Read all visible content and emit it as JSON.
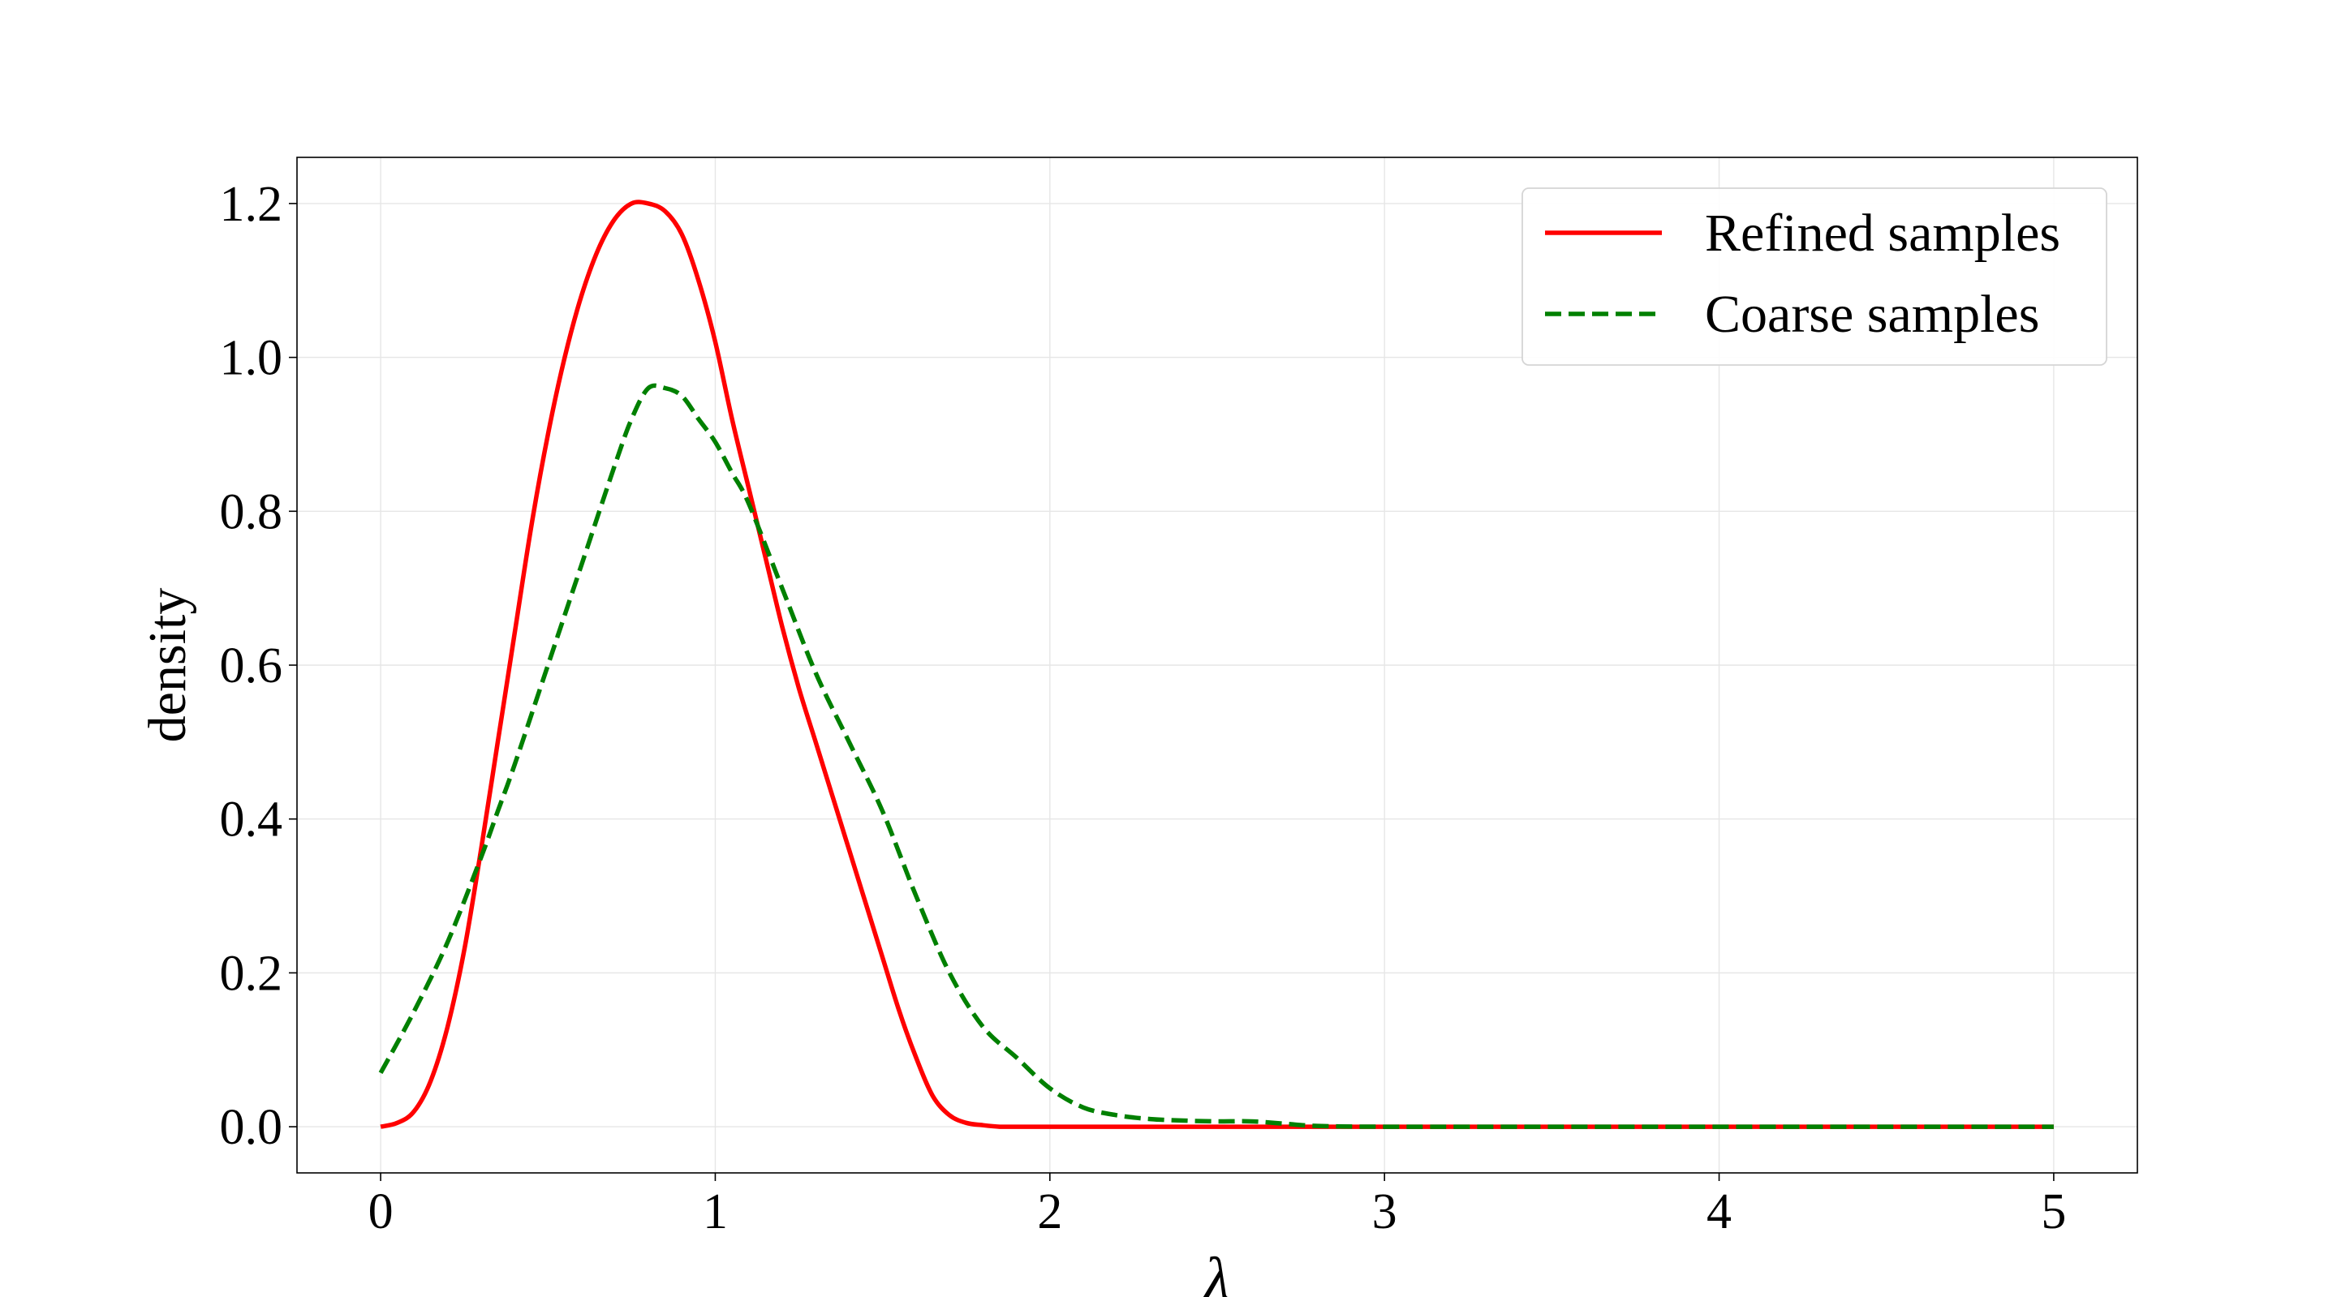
{
  "chart_data": {
    "type": "line",
    "title": "",
    "xlabel": "λ",
    "ylabel": "density",
    "xlim": [
      -0.25,
      5.25
    ],
    "ylim": [
      -0.06,
      1.26
    ],
    "xticks": [
      0,
      1,
      2,
      3,
      4,
      5
    ],
    "xtick_labels": [
      "0",
      "1",
      "2",
      "3",
      "4",
      "5"
    ],
    "yticks": [
      0.0,
      0.2,
      0.4,
      0.6,
      0.8,
      1.0,
      1.2
    ],
    "ytick_labels": [
      "0.0",
      "0.2",
      "0.4",
      "0.6",
      "0.8",
      "1.0",
      "1.2"
    ],
    "grid": true,
    "legend_position": "top-right",
    "series": [
      {
        "name": "Refined samples",
        "color": "#ff0000",
        "style": "solid",
        "x": [
          0,
          0.05,
          0.1,
          0.15,
          0.2,
          0.25,
          0.3,
          0.35,
          0.4,
          0.45,
          0.5,
          0.55,
          0.6,
          0.65,
          0.7,
          0.75,
          0.8,
          0.85,
          0.9,
          0.95,
          1.0,
          1.05,
          1.1,
          1.15,
          1.2,
          1.25,
          1.3,
          1.35,
          1.4,
          1.45,
          1.5,
          1.55,
          1.6,
          1.65,
          1.7,
          1.75,
          1.8,
          1.85,
          1.9,
          2.0,
          2.5,
          3.0,
          3.5,
          4.0,
          4.5,
          5.0
        ],
        "y": [
          0.0,
          0.005,
          0.02,
          0.06,
          0.13,
          0.23,
          0.36,
          0.5,
          0.64,
          0.78,
          0.9,
          1.0,
          1.08,
          1.14,
          1.18,
          1.2,
          1.2,
          1.19,
          1.16,
          1.1,
          1.02,
          0.92,
          0.83,
          0.74,
          0.65,
          0.57,
          0.5,
          0.43,
          0.36,
          0.29,
          0.22,
          0.15,
          0.09,
          0.04,
          0.015,
          0.005,
          0.002,
          0.0,
          0.0,
          0.0,
          0.0,
          0.0,
          0.0,
          0.0,
          0.0,
          0.0
        ]
      },
      {
        "name": "Coarse samples",
        "color": "#008000",
        "style": "dashed",
        "x": [
          0,
          0.1,
          0.2,
          0.3,
          0.35,
          0.4,
          0.5,
          0.6,
          0.7,
          0.75,
          0.8,
          0.85,
          0.9,
          0.95,
          1.0,
          1.05,
          1.1,
          1.2,
          1.3,
          1.4,
          1.5,
          1.6,
          1.7,
          1.8,
          1.9,
          2.0,
          2.1,
          2.2,
          2.3,
          2.4,
          2.5,
          2.6,
          2.7,
          2.8,
          3.0,
          3.5,
          4.0,
          4.5,
          5.0
        ],
        "y": [
          0.07,
          0.15,
          0.24,
          0.35,
          0.41,
          0.47,
          0.6,
          0.73,
          0.86,
          0.92,
          0.96,
          0.96,
          0.95,
          0.92,
          0.89,
          0.85,
          0.81,
          0.7,
          0.59,
          0.5,
          0.41,
          0.3,
          0.2,
          0.13,
          0.09,
          0.05,
          0.025,
          0.015,
          0.01,
          0.008,
          0.007,
          0.007,
          0.004,
          0.001,
          0.0,
          0.0,
          0.0,
          0.0,
          0.0
        ]
      }
    ]
  }
}
